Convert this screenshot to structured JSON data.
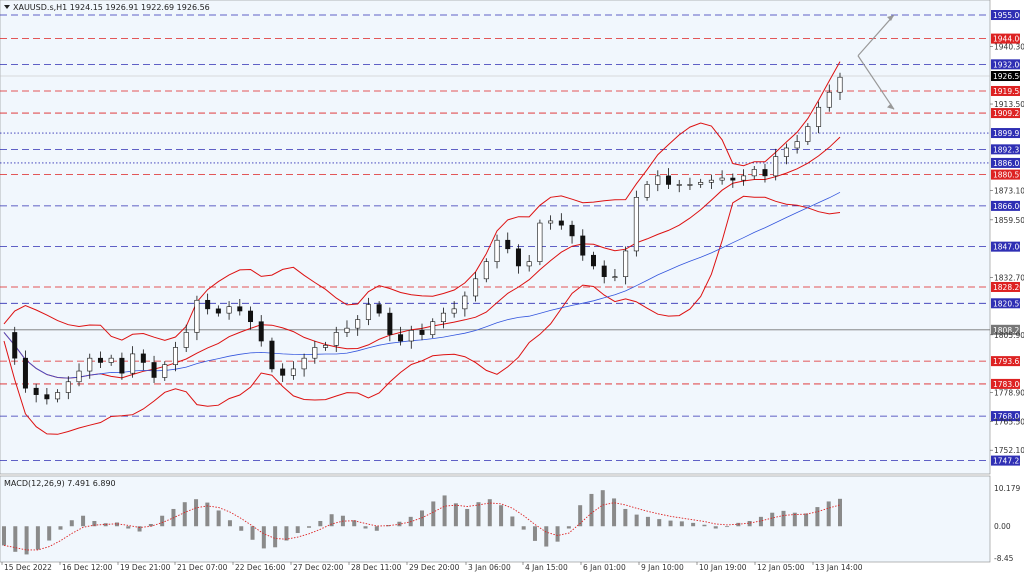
{
  "chart_data": [
    {
      "type": "candlestick",
      "symbol_header": "XAUUSD.s,H1  1924.15 1926.91 1922.69 1926.56",
      "timeframe": "H1",
      "ohlc": {
        "open": 1924.15,
        "high": 1926.91,
        "low": 1922.69,
        "close": 1926.56
      },
      "ylim": [
        1741,
        1962
      ],
      "y_ticks": [
        "1940.30",
        "1913.50",
        "1873.10",
        "1859.50",
        "1832.70",
        "1805.90",
        "1778.90",
        "1765.50",
        "1752.10"
      ],
      "x_tick_labels": [
        "15 Dec 2022",
        "16 Dec 12:00",
        "19 Dec 21:00",
        "21 Dec 07:00",
        "22 Dec 16:00",
        "27 Dec 02:00",
        "28 Dec 11:00",
        "29 Dec 20:00",
        "3 Jan 06:00",
        "4 Jan 15:00",
        "6 Jan 01:00",
        "9 Jan 10:00",
        "10 Jan 19:00",
        "12 Jan 05:00",
        "13 Jan 14:00"
      ],
      "current_price": {
        "value": 1926.56,
        "label": "1926.56",
        "color": "#000000"
      },
      "price_levels": [
        {
          "value": 1955.0,
          "label": "1955.00",
          "kind": "support",
          "color": "#2f2fb4",
          "style": "dash"
        },
        {
          "value": 1944.0,
          "label": "1944.00",
          "kind": "resistance",
          "color": "#dd2222",
          "style": "dash"
        },
        {
          "value": 1932.0,
          "label": "1932.00",
          "kind": "support",
          "color": "#2f2fb4",
          "style": "dash"
        },
        {
          "value": 1919.58,
          "label": "1919.58",
          "kind": "resistance",
          "color": "#dd2222",
          "style": "dash"
        },
        {
          "value": 1909.28,
          "label": "1909.28",
          "kind": "resistance",
          "color": "#dd2222",
          "style": "dash"
        },
        {
          "value": 1899.97,
          "label": "1899.97",
          "kind": "pivot",
          "color": "#2f2fb4",
          "style": "dot"
        },
        {
          "value": 1892.37,
          "label": "1892.37",
          "kind": "support",
          "color": "#2f2fb4",
          "style": "dash"
        },
        {
          "value": 1886.03,
          "label": "1886.03",
          "kind": "pivot",
          "color": "#2f2fb4",
          "style": "dot"
        },
        {
          "value": 1880.59,
          "label": "1880.59",
          "kind": "resistance",
          "color": "#dd2222",
          "style": "dash"
        },
        {
          "value": 1866.0,
          "label": "1866.00",
          "kind": "support",
          "color": "#2f2fb4",
          "style": "dash"
        },
        {
          "value": 1847.0,
          "label": "1847.00",
          "kind": "support",
          "color": "#2f2fb4",
          "style": "dash"
        },
        {
          "value": 1828.2,
          "label": "1828.20",
          "kind": "resistance",
          "color": "#dd2222",
          "style": "dash"
        },
        {
          "value": 1820.59,
          "label": "1820.59",
          "kind": "support",
          "color": "#2f2fb4",
          "style": "dash"
        },
        {
          "value": 1808.23,
          "label": "1808.23",
          "kind": "line",
          "color": "#777777",
          "style": "solid"
        },
        {
          "value": 1793.63,
          "label": "1793.63",
          "kind": "resistance",
          "color": "#dd2222",
          "style": "dash"
        },
        {
          "value": 1783.0,
          "label": "1783.00",
          "kind": "resistance",
          "color": "#dd2222",
          "style": "dash"
        },
        {
          "value": 1768.0,
          "label": "1768.00",
          "kind": "support",
          "color": "#2f2fb4",
          "style": "dash"
        },
        {
          "value": 1747.25,
          "label": "1747.25",
          "kind": "support",
          "color": "#2f2fb4",
          "style": "dash"
        }
      ],
      "price_path": [
        1807,
        1795,
        1781,
        1778,
        1776,
        1779,
        1784,
        1789,
        1795,
        1793,
        1795,
        1788,
        1797,
        1793,
        1786,
        1792,
        1800,
        1807,
        1822,
        1818,
        1816,
        1819,
        1817,
        1812,
        1803,
        1790,
        1787,
        1790,
        1795,
        1800,
        1801,
        1807,
        1809,
        1813,
        1820,
        1816,
        1806,
        1803,
        1808,
        1806,
        1812,
        1816,
        1818,
        1824,
        1832,
        1840,
        1850,
        1846,
        1838,
        1840,
        1858,
        1859,
        1857,
        1852,
        1843,
        1838,
        1833,
        1833,
        1845,
        1870,
        1876,
        1880,
        1876,
        1876,
        1876,
        1877,
        1878,
        1879,
        1878,
        1880,
        1883,
        1880,
        1889,
        1893,
        1896,
        1903,
        1912,
        1919,
        1926
      ],
      "indicators": {
        "bollinger": {
          "color": "#dd1111"
        },
        "moving_average": {
          "color": "#3355dd"
        }
      },
      "projection_arrows": {
        "color": "#999999"
      }
    },
    {
      "type": "bar",
      "title": "MACD(12,26,9) 7.491 6.890",
      "ylim": [
        -8.45,
        10.179
      ],
      "y_ticks": [
        "10.179",
        "0.00",
        "-8.45"
      ],
      "histogram": [
        -5.1,
        -6.8,
        -7.5,
        -6.2,
        -3.8,
        -0.9,
        1.6,
        2.8,
        1.4,
        0.8,
        1.0,
        -0.6,
        -1.4,
        0.6,
        2.8,
        4.6,
        6.4,
        7.2,
        6.3,
        4.2,
        1.6,
        -1.2,
        -3.6,
        -5.9,
        -5.6,
        -3.8,
        -1.8,
        -0.4,
        1.4,
        3.2,
        2.8,
        1.6,
        -0.6,
        -1.2,
        0.3,
        1.2,
        2.5,
        4.2,
        6.6,
        8.2,
        6.1,
        4.6,
        6.4,
        7.2,
        5.6,
        2.6,
        -0.9,
        -3.9,
        -5.4,
        -4.1,
        -0.6,
        5.6,
        8.6,
        9.6,
        7.4,
        4.6,
        3.1,
        2.5,
        1.9,
        1.5,
        1.3,
        0.9,
        0.4,
        -0.6,
        -0.1,
        0.9,
        1.4,
        2.5,
        3.6,
        4.1,
        3.6,
        3.4,
        5.1,
        6.6,
        7.3
      ],
      "signal": {
        "color": "#dd2222",
        "style": "dot"
      },
      "histogram_color": "#8a8a8a"
    }
  ]
}
